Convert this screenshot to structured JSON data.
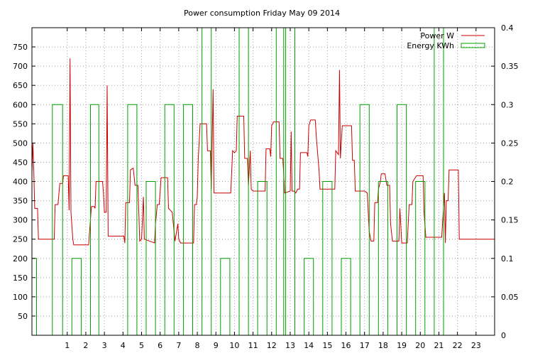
{
  "chart_data": {
    "type": "line",
    "title": "Power consumption Friday May 09 2014",
    "xlabel": "",
    "ylabel": "",
    "xlim": [
      -0.9,
      24
    ],
    "ylim": [
      0,
      800
    ],
    "y2lim": [
      0,
      0.4
    ],
    "grid": true,
    "legend_position": "top-right",
    "x_ticks": [
      "1",
      "2",
      "3",
      "4",
      "5",
      "6",
      "7",
      "8",
      "9",
      "10",
      "11",
      "12",
      "13",
      "14",
      "15",
      "16",
      "17",
      "18",
      "19",
      "20",
      "21",
      "22",
      "23"
    ],
    "y_ticks": [
      "50",
      "100",
      "150",
      "200",
      "250",
      "300",
      "350",
      "400",
      "450",
      "500",
      "550",
      "600",
      "650",
      "700",
      "750"
    ],
    "y2_ticks": [
      "0",
      "0.05",
      "0.1",
      "0.15",
      "0.2",
      "0.25",
      "0.3",
      "0.35",
      "0.4"
    ],
    "series": [
      {
        "name": "Power W",
        "color": "#cc0000",
        "axis": "left",
        "points": [
          [
            -0.9,
            420
          ],
          [
            -0.85,
            500
          ],
          [
            -0.8,
            430
          ],
          [
            -0.75,
            330
          ],
          [
            -0.6,
            330
          ],
          [
            -0.55,
            250
          ],
          [
            -0.1,
            250
          ],
          [
            0.0,
            250
          ],
          [
            0.3,
            250
          ],
          [
            0.35,
            340
          ],
          [
            0.5,
            340
          ],
          [
            0.6,
            395
          ],
          [
            0.75,
            395
          ],
          [
            0.8,
            415
          ],
          [
            1.05,
            415
          ],
          [
            1.1,
            325
          ],
          [
            1.15,
            720
          ],
          [
            1.2,
            320
          ],
          [
            1.3,
            250
          ],
          [
            1.35,
            235
          ],
          [
            1.9,
            235
          ],
          [
            2.15,
            235
          ],
          [
            2.3,
            335
          ],
          [
            2.45,
            335
          ],
          [
            2.5,
            330
          ],
          [
            2.55,
            400
          ],
          [
            2.9,
            400
          ],
          [
            2.95,
            370
          ],
          [
            3.0,
            320
          ],
          [
            3.1,
            320
          ],
          [
            3.15,
            650
          ],
          [
            3.2,
            258
          ],
          [
            3.45,
            258
          ],
          [
            4.05,
            258
          ],
          [
            4.1,
            240
          ],
          [
            4.15,
            345
          ],
          [
            4.35,
            345
          ],
          [
            4.4,
            430
          ],
          [
            4.55,
            435
          ],
          [
            4.65,
            390
          ],
          [
            4.8,
            390
          ],
          [
            4.85,
            320
          ],
          [
            4.9,
            245
          ],
          [
            5.0,
            250
          ],
          [
            5.1,
            360
          ],
          [
            5.15,
            250
          ],
          [
            5.7,
            240
          ],
          [
            5.75,
            290
          ],
          [
            5.85,
            340
          ],
          [
            5.95,
            340
          ],
          [
            6.05,
            410
          ],
          [
            6.4,
            410
          ],
          [
            6.45,
            330
          ],
          [
            6.65,
            320
          ],
          [
            6.8,
            245
          ],
          [
            6.95,
            290
          ],
          [
            7.0,
            250
          ],
          [
            7.1,
            240
          ],
          [
            7.8,
            240
          ],
          [
            7.85,
            340
          ],
          [
            7.95,
            340
          ],
          [
            8.0,
            360
          ],
          [
            8.05,
            460
          ],
          [
            8.15,
            550
          ],
          [
            8.5,
            550
          ],
          [
            8.55,
            480
          ],
          [
            8.7,
            480
          ],
          [
            8.75,
            380
          ],
          [
            8.85,
            640
          ],
          [
            8.9,
            370
          ],
          [
            9.0,
            370
          ],
          [
            9.5,
            370
          ],
          [
            9.8,
            370
          ],
          [
            9.9,
            480
          ],
          [
            10.0,
            475
          ],
          [
            10.1,
            480
          ],
          [
            10.15,
            570
          ],
          [
            10.5,
            570
          ],
          [
            10.55,
            460
          ],
          [
            10.7,
            460
          ],
          [
            10.75,
            390
          ],
          [
            10.85,
            480
          ],
          [
            10.9,
            380
          ],
          [
            11.0,
            375
          ],
          [
            11.5,
            375
          ],
          [
            11.65,
            375
          ],
          [
            11.7,
            485
          ],
          [
            11.9,
            485
          ],
          [
            11.95,
            465
          ],
          [
            12.0,
            545
          ],
          [
            12.1,
            555
          ],
          [
            12.4,
            555
          ],
          [
            12.45,
            460
          ],
          [
            12.6,
            460
          ],
          [
            12.65,
            420
          ],
          [
            12.7,
            370
          ],
          [
            13.0,
            375
          ],
          [
            13.05,
            530
          ],
          [
            13.1,
            375
          ],
          [
            13.2,
            375
          ],
          [
            13.3,
            370
          ],
          [
            13.4,
            380
          ],
          [
            13.5,
            380
          ],
          [
            13.55,
            475
          ],
          [
            13.9,
            475
          ],
          [
            13.95,
            465
          ],
          [
            14.0,
            545
          ],
          [
            14.1,
            560
          ],
          [
            14.35,
            560
          ],
          [
            14.4,
            520
          ],
          [
            14.5,
            460
          ],
          [
            14.55,
            430
          ],
          [
            14.6,
            380
          ],
          [
            14.8,
            380
          ],
          [
            15.0,
            380
          ],
          [
            15.4,
            380
          ],
          [
            15.45,
            480
          ],
          [
            15.6,
            470
          ],
          [
            15.65,
            690
          ],
          [
            15.7,
            460
          ],
          [
            15.8,
            545
          ],
          [
            16.3,
            545
          ],
          [
            16.35,
            455
          ],
          [
            16.45,
            455
          ],
          [
            16.5,
            375
          ],
          [
            17.0,
            375
          ],
          [
            17.15,
            370
          ],
          [
            17.2,
            320
          ],
          [
            17.25,
            270
          ],
          [
            17.35,
            245
          ],
          [
            17.5,
            245
          ],
          [
            17.55,
            345
          ],
          [
            17.7,
            345
          ],
          [
            17.75,
            380
          ],
          [
            17.85,
            400
          ],
          [
            17.9,
            420
          ],
          [
            18.1,
            420
          ],
          [
            18.2,
            390
          ],
          [
            18.35,
            390
          ],
          [
            18.4,
            290
          ],
          [
            18.5,
            245
          ],
          [
            18.85,
            245
          ],
          [
            18.9,
            330
          ],
          [
            19.0,
            240
          ],
          [
            19.3,
            240
          ],
          [
            19.4,
            340
          ],
          [
            19.55,
            340
          ],
          [
            19.6,
            400
          ],
          [
            19.8,
            415
          ],
          [
            20.15,
            415
          ],
          [
            20.2,
            320
          ],
          [
            20.3,
            255
          ],
          [
            20.75,
            255
          ],
          [
            21.0,
            255
          ],
          [
            21.15,
            255
          ],
          [
            21.3,
            370
          ],
          [
            21.35,
            240
          ],
          [
            21.4,
            350
          ],
          [
            21.5,
            350
          ],
          [
            21.55,
            430
          ],
          [
            22.05,
            430
          ],
          [
            22.1,
            250
          ],
          [
            24.0,
            250
          ]
        ]
      },
      {
        "name": "Energy KWh",
        "color": "#00a000",
        "axis": "right",
        "points": [
          [
            -0.9,
            0.1
          ],
          [
            -0.65,
            0.1
          ],
          [
            -0.65,
            0
          ],
          [
            0.2,
            0
          ],
          [
            0.2,
            0.3
          ],
          [
            0.75,
            0.3
          ],
          [
            0.75,
            0
          ],
          [
            1.25,
            0
          ],
          [
            1.25,
            0.1
          ],
          [
            1.75,
            0.1
          ],
          [
            1.75,
            0
          ],
          [
            2.25,
            0
          ],
          [
            2.25,
            0.3
          ],
          [
            2.7,
            0.3
          ],
          [
            2.7,
            0
          ],
          [
            4.25,
            0
          ],
          [
            4.25,
            0.3
          ],
          [
            4.75,
            0.3
          ],
          [
            4.75,
            0
          ],
          [
            5.25,
            0
          ],
          [
            5.25,
            0.2
          ],
          [
            5.75,
            0.2
          ],
          [
            5.75,
            0
          ],
          [
            6.25,
            0
          ],
          [
            6.25,
            0.3
          ],
          [
            6.75,
            0.3
          ],
          [
            6.75,
            0
          ],
          [
            7.25,
            0
          ],
          [
            7.25,
            0.3
          ],
          [
            7.75,
            0.3
          ],
          [
            7.75,
            0
          ],
          [
            8.25,
            0
          ],
          [
            8.25,
            0.4
          ],
          [
            8.75,
            0.4
          ],
          [
            8.75,
            0
          ],
          [
            9.25,
            0
          ],
          [
            9.25,
            0.1
          ],
          [
            9.75,
            0.1
          ],
          [
            9.75,
            0
          ],
          [
            10.25,
            0
          ],
          [
            10.25,
            0.4
          ],
          [
            10.75,
            0.4
          ],
          [
            10.75,
            0
          ],
          [
            11.25,
            0
          ],
          [
            11.25,
            0.2
          ],
          [
            11.75,
            0.2
          ],
          [
            11.75,
            0
          ],
          [
            12.25,
            0
          ],
          [
            12.25,
            0.4
          ],
          [
            12.65,
            0.4
          ],
          [
            12.65,
            0
          ],
          [
            12.75,
            0
          ],
          [
            12.75,
            0.4
          ],
          [
            13.25,
            0.4
          ],
          [
            13.25,
            0
          ],
          [
            13.75,
            0
          ],
          [
            13.75,
            0.1
          ],
          [
            14.25,
            0.1
          ],
          [
            14.25,
            0
          ],
          [
            14.75,
            0
          ],
          [
            14.75,
            0.2
          ],
          [
            15.25,
            0.2
          ],
          [
            15.25,
            0
          ],
          [
            15.75,
            0
          ],
          [
            15.75,
            0.1
          ],
          [
            16.25,
            0.1
          ],
          [
            16.25,
            0
          ],
          [
            16.75,
            0
          ],
          [
            16.75,
            0.3
          ],
          [
            17.25,
            0.3
          ],
          [
            17.25,
            0
          ],
          [
            17.75,
            0
          ],
          [
            17.75,
            0.2
          ],
          [
            18.25,
            0.2
          ],
          [
            18.25,
            0
          ],
          [
            18.75,
            0
          ],
          [
            18.75,
            0.3
          ],
          [
            19.25,
            0.3
          ],
          [
            19.25,
            0
          ],
          [
            19.75,
            0
          ],
          [
            19.75,
            0.2
          ],
          [
            20.25,
            0.2
          ],
          [
            20.25,
            0
          ],
          [
            20.75,
            0
          ],
          [
            20.75,
            0.4
          ],
          [
            21.25,
            0.4
          ],
          [
            21.25,
            0
          ],
          [
            24.0,
            0
          ]
        ]
      }
    ]
  }
}
